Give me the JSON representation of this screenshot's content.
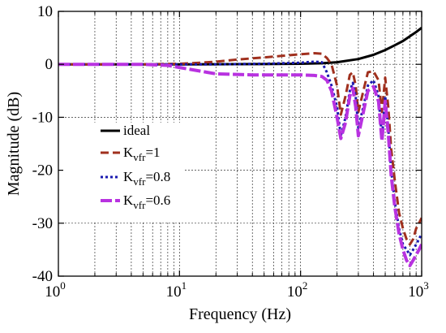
{
  "chart_data": {
    "type": "line",
    "title": "",
    "xlabel": "Frequency (Hz)",
    "ylabel": "Magnitude (dB)",
    "xscale": "log",
    "xlim": [
      1,
      1000
    ],
    "ylim": [
      -40,
      10
    ],
    "grid": true,
    "legend_position": "left-middle",
    "x_ticks": [
      {
        "value": 1,
        "base": "10",
        "exp": "0"
      },
      {
        "value": 10,
        "base": "10",
        "exp": "1"
      },
      {
        "value": 100,
        "base": "10",
        "exp": "2"
      },
      {
        "value": 1000,
        "base": "10",
        "exp": "3"
      }
    ],
    "y_ticks": [
      {
        "value": 10,
        "label": "10"
      },
      {
        "value": 0,
        "label": "0"
      },
      {
        "value": -10,
        "label": "-10"
      },
      {
        "value": -20,
        "label": "-20"
      },
      {
        "value": -30,
        "label": "-30"
      },
      {
        "value": -40,
        "label": "-40"
      }
    ],
    "series": [
      {
        "name": "ideal",
        "label_main": "ideal",
        "label_sub": "",
        "label_tail": "",
        "color": "#000000",
        "dash": "",
        "width": 3,
        "x": [
          1,
          10,
          50,
          100,
          150,
          200,
          300,
          400,
          500,
          600,
          700,
          800,
          900,
          1000
        ],
        "y": [
          0,
          0,
          0.05,
          0.1,
          0.2,
          0.4,
          1.0,
          1.8,
          2.7,
          3.6,
          4.4,
          5.3,
          6.1,
          6.9
        ]
      },
      {
        "name": "Kvfr=1",
        "label_main": "K",
        "label_sub": "vfr",
        "label_tail": "=1",
        "color": "#a0301e",
        "dash": "10,5",
        "width": 3,
        "x": [
          1,
          5,
          10,
          15,
          20,
          30,
          50,
          70,
          100,
          130,
          150,
          165,
          180,
          200,
          215,
          235,
          255,
          270,
          285,
          300,
          330,
          360,
          400,
          440,
          470,
          500,
          530,
          560,
          600,
          650,
          700,
          750,
          800,
          850,
          900,
          950,
          1000
        ],
        "y": [
          0,
          0,
          0.1,
          0.3,
          0.5,
          0.9,
          1.3,
          1.6,
          1.9,
          2.1,
          2.0,
          1.2,
          0,
          -4,
          -9.5,
          -6,
          -2,
          -1.5,
          -4,
          -9,
          -5,
          -1.5,
          -1.3,
          -3,
          -9,
          -2.5,
          -8,
          -16,
          -22,
          -28,
          -31,
          -33,
          -34,
          -33,
          -31,
          -30,
          -29
        ]
      },
      {
        "name": "Kvfr=0.8",
        "label_main": "K",
        "label_sub": "vfr",
        "label_tail": "=0.8",
        "color": "#1a1ab0",
        "dash": "3,3",
        "width": 3,
        "x": [
          1,
          5,
          10,
          20,
          50,
          100,
          130,
          150,
          165,
          180,
          200,
          215,
          235,
          255,
          270,
          285,
          300,
          330,
          360,
          400,
          440,
          470,
          500,
          530,
          560,
          600,
          650,
          700,
          750,
          800,
          850,
          900,
          950,
          1000
        ],
        "y": [
          0,
          0,
          0,
          0,
          0.1,
          0.3,
          0.5,
          0.4,
          -1.5,
          -4,
          -8,
          -13.5,
          -10,
          -5,
          -3.5,
          -6,
          -12,
          -8,
          -4,
          -3,
          -6,
          -14,
          -6,
          -12,
          -20,
          -26,
          -31,
          -34,
          -35,
          -36,
          -35,
          -34,
          -33,
          -32
        ]
      },
      {
        "name": "Kvfr=0.6",
        "label_main": "K",
        "label_sub": "vfr",
        "label_tail": "=0.6",
        "color": "#b832e0",
        "dash": "14,4",
        "width": 4,
        "x": [
          1,
          5,
          8,
          10,
          15,
          20,
          40,
          60,
          100,
          130,
          150,
          165,
          180,
          200,
          215,
          235,
          255,
          270,
          285,
          300,
          330,
          360,
          400,
          440,
          470,
          500,
          530,
          560,
          600,
          650,
          700,
          750,
          800,
          850,
          900,
          950,
          1000
        ],
        "y": [
          0,
          0,
          -0.2,
          -0.6,
          -1.3,
          -1.8,
          -2.0,
          -2.0,
          -2.0,
          -2.1,
          -2.3,
          -3,
          -5,
          -10,
          -14,
          -11,
          -6,
          -4.5,
          -8,
          -13.5,
          -9,
          -5,
          -4.2,
          -7,
          -14.5,
          -7,
          -13,
          -21,
          -27,
          -32,
          -35,
          -37,
          -38,
          -37,
          -36,
          -35,
          -34
        ]
      }
    ]
  }
}
